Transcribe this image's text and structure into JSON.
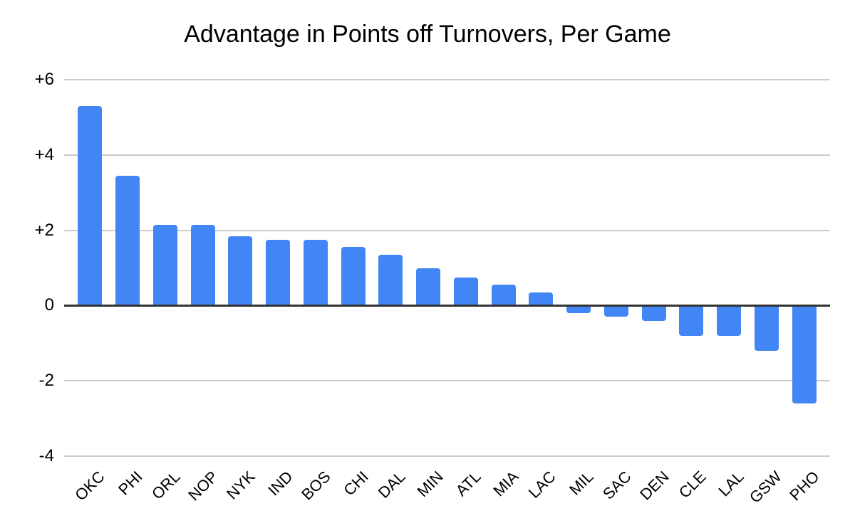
{
  "chart_data": {
    "type": "bar",
    "title": "Advantage in Points off Turnovers, Per Game",
    "categories": [
      "OKC",
      "PHI",
      "ORL",
      "NOP",
      "NYK",
      "IND",
      "BOS",
      "CHI",
      "DAL",
      "MIN",
      "ATL",
      "MIA",
      "LAC",
      "MIL",
      "SAC",
      "DEN",
      "CLE",
      "LAL",
      "GSW",
      "PHO"
    ],
    "values": [
      5.3,
      3.45,
      2.15,
      2.15,
      1.85,
      1.75,
      1.75,
      1.55,
      1.35,
      1.0,
      0.75,
      0.55,
      0.35,
      -0.2,
      -0.3,
      -0.4,
      -0.8,
      -0.8,
      -1.2,
      -2.6
    ],
    "xlabel": "",
    "ylabel": "",
    "ylim": [
      -4,
      6
    ],
    "yticks": [
      {
        "value": 6,
        "label": "+6"
      },
      {
        "value": 4,
        "label": "+4"
      },
      {
        "value": 2,
        "label": "+2"
      },
      {
        "value": 0,
        "label": "0"
      },
      {
        "value": -2,
        "label": "-2"
      },
      {
        "value": -4,
        "label": "-4"
      }
    ],
    "grid": true,
    "legend": "none"
  },
  "colors": {
    "bar": "#4285f4",
    "gridline": "#cccccc",
    "zero_line": "#333333",
    "text": "#000000",
    "background": "#ffffff"
  }
}
